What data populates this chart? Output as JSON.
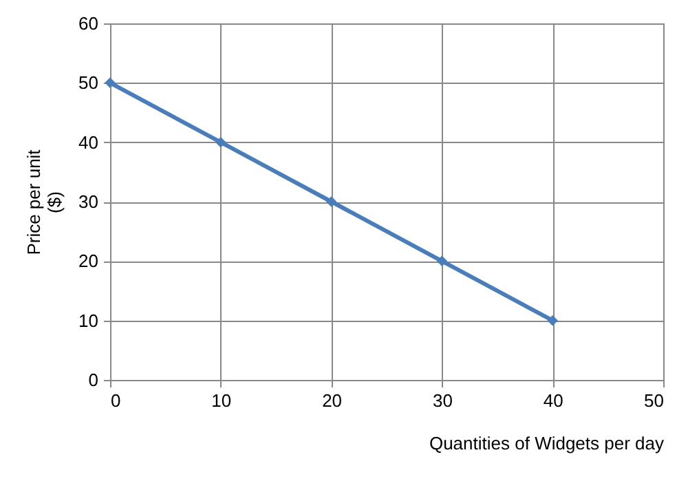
{
  "chart_data": {
    "type": "line",
    "xlabel": "Quantities of Widgets per day",
    "ylabel": "Price per unit ($)",
    "x": [
      0,
      10,
      20,
      30,
      40
    ],
    "series": [
      {
        "color": "#4a7ebb",
        "values": [
          50,
          40,
          30,
          20,
          10
        ]
      }
    ],
    "xlim": [
      0,
      50
    ],
    "xticks": [
      0,
      10,
      20,
      30,
      40,
      50
    ],
    "ylim": [
      0,
      60
    ],
    "yticks": [
      0,
      10,
      20,
      30,
      40,
      50,
      60
    ],
    "grid": true,
    "marker": "diamond",
    "line_style": "solid"
  }
}
